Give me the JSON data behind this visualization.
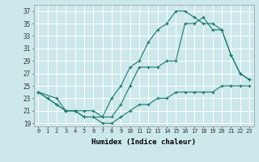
{
  "xlabel": "Humidex (Indice chaleur)",
  "bg_color": "#cce8ea",
  "grid_color": "#ffffff",
  "line_color": "#1a7a6e",
  "xlim": [
    -0.5,
    23.5
  ],
  "ylim": [
    18.5,
    38
  ],
  "xticks": [
    0,
    1,
    2,
    3,
    4,
    5,
    6,
    7,
    8,
    9,
    10,
    11,
    12,
    13,
    14,
    15,
    16,
    17,
    18,
    19,
    20,
    21,
    22,
    23
  ],
  "yticks": [
    19,
    21,
    23,
    25,
    27,
    29,
    31,
    33,
    35,
    37
  ],
  "line1_x": [
    0,
    1,
    2,
    3,
    4,
    5,
    6,
    7,
    8,
    9,
    10,
    11,
    12,
    13,
    14,
    15,
    16,
    17,
    18,
    19,
    20,
    21,
    22,
    23
  ],
  "line1_y": [
    24,
    23,
    22,
    21,
    21,
    20,
    20,
    19,
    19,
    20,
    21,
    22,
    22,
    23,
    23,
    24,
    24,
    24,
    24,
    24,
    25,
    25,
    25,
    25
  ],
  "line2_x": [
    0,
    1,
    2,
    3,
    4,
    5,
    6,
    7,
    8,
    9,
    10,
    11,
    12,
    13,
    14,
    15,
    16,
    17,
    18,
    19,
    20,
    21,
    22,
    23
  ],
  "line2_y": [
    24,
    23,
    22,
    21,
    21,
    20,
    20,
    20,
    23,
    25,
    28,
    29,
    32,
    34,
    35,
    37,
    37,
    36,
    35,
    35,
    34,
    30,
    27,
    26
  ],
  "line3_x": [
    0,
    2,
    3,
    4,
    5,
    6,
    7,
    8,
    9,
    10,
    11,
    12,
    13,
    14,
    15,
    16,
    17,
    18,
    19,
    20,
    21,
    22,
    23
  ],
  "line3_y": [
    24,
    23,
    21,
    21,
    21,
    21,
    20,
    20,
    22,
    25,
    28,
    28,
    28,
    29,
    29,
    35,
    35,
    36,
    34,
    34,
    30,
    27,
    26
  ]
}
